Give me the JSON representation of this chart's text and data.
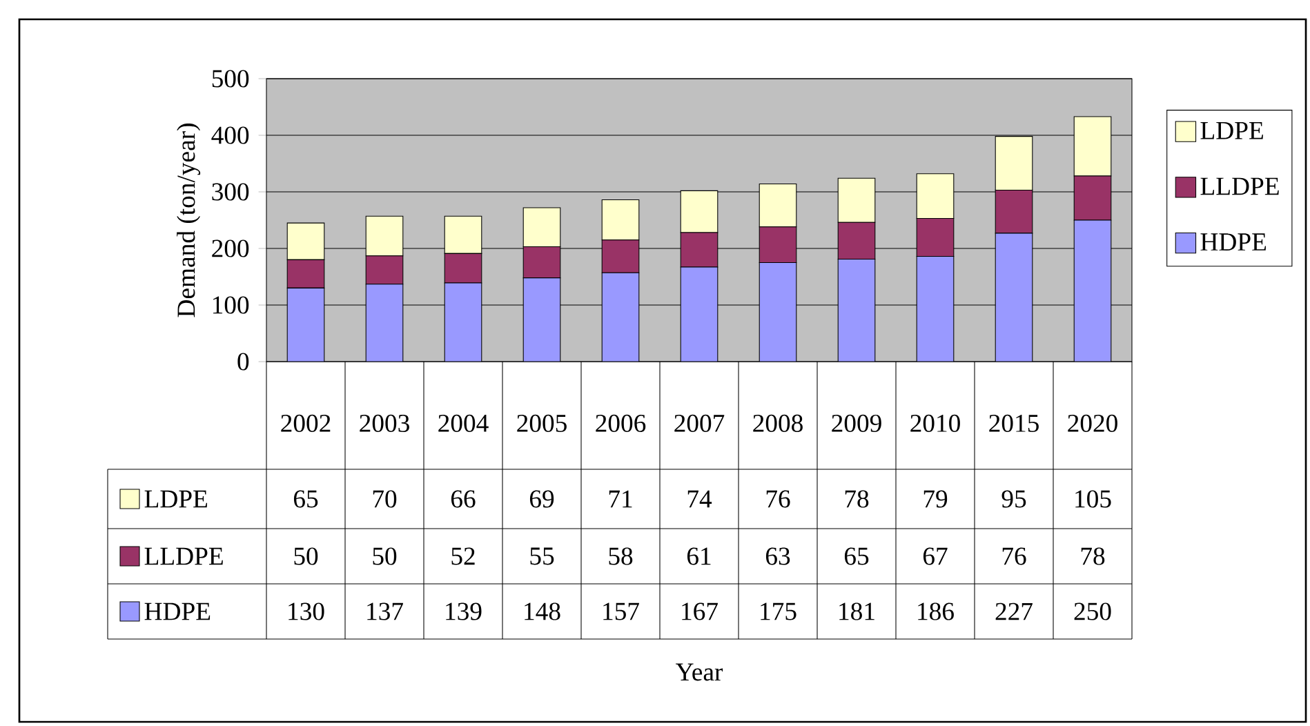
{
  "chart_data": {
    "type": "bar",
    "stacked": true,
    "annotations": [
      "Year"
    ],
    "ylabel": "Demand (ton/year)",
    "categories": [
      "2002",
      "2003",
      "2004",
      "2005",
      "2006",
      "2007",
      "2008",
      "2009",
      "2010",
      "2015",
      "2020"
    ],
    "series": [
      {
        "name": "HDPE",
        "color": "#9999ff",
        "values": [
          130,
          137,
          139,
          148,
          157,
          167,
          175,
          181,
          186,
          227,
          250
        ]
      },
      {
        "name": "LLDPE",
        "color": "#993366",
        "values": [
          50,
          50,
          52,
          55,
          58,
          61,
          63,
          65,
          67,
          76,
          78
        ]
      },
      {
        "name": "LDPE",
        "color": "#ffffcc",
        "values": [
          65,
          70,
          66,
          69,
          71,
          74,
          76,
          78,
          79,
          95,
          105
        ]
      }
    ],
    "ylim": [
      0,
      500
    ],
    "yticks": [
      0,
      100,
      200,
      300,
      400,
      500
    ],
    "grid": "y",
    "legend": "right",
    "data_labels": true
  }
}
